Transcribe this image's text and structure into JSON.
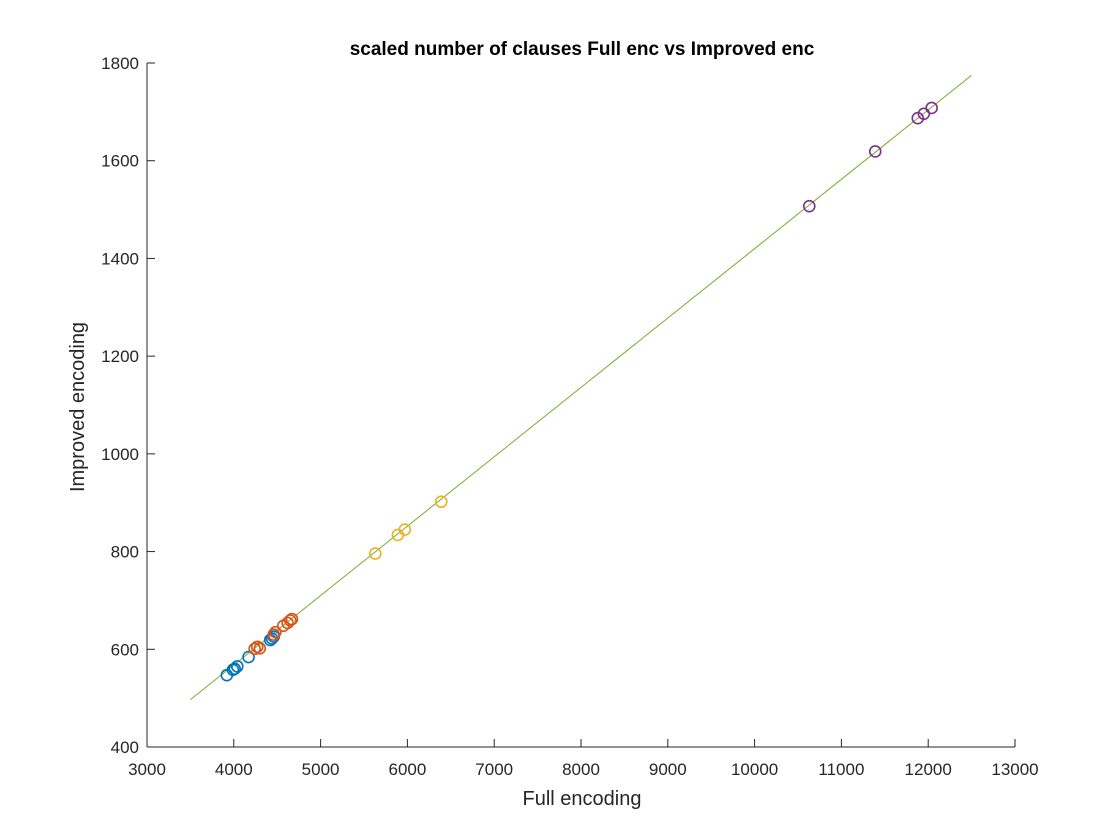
{
  "chart_data": {
    "type": "scatter",
    "title": "scaled number of clauses Full enc vs Improved enc",
    "xlabel": "Full encoding",
    "ylabel": "Improved encoding",
    "xlim": [
      3000,
      13000
    ],
    "ylim": [
      400,
      1800
    ],
    "xticks": [
      3000,
      4000,
      5000,
      6000,
      7000,
      8000,
      9000,
      10000,
      11000,
      12000,
      13000
    ],
    "yticks": [
      400,
      600,
      800,
      1000,
      1200,
      1400,
      1600,
      1800
    ],
    "grid": false,
    "series": [
      {
        "color": "#0072BD",
        "marker": "circle-open",
        "points": [
          {
            "x": 3920,
            "y": 547
          },
          {
            "x": 3990,
            "y": 558
          },
          {
            "x": 4010,
            "y": 560
          },
          {
            "x": 4040,
            "y": 565
          },
          {
            "x": 4170,
            "y": 584
          },
          {
            "x": 4420,
            "y": 619
          },
          {
            "x": 4440,
            "y": 622
          },
          {
            "x": 4460,
            "y": 626
          }
        ]
      },
      {
        "color": "#D95319",
        "marker": "circle-open",
        "points": [
          {
            "x": 4240,
            "y": 601
          },
          {
            "x": 4270,
            "y": 605
          },
          {
            "x": 4300,
            "y": 602
          },
          {
            "x": 4460,
            "y": 630
          },
          {
            "x": 4480,
            "y": 635
          },
          {
            "x": 4570,
            "y": 648
          },
          {
            "x": 4620,
            "y": 654
          },
          {
            "x": 4650,
            "y": 659
          },
          {
            "x": 4670,
            "y": 662
          }
        ]
      },
      {
        "color": "#EDB120",
        "marker": "circle-open",
        "points": [
          {
            "x": 5630,
            "y": 796
          },
          {
            "x": 5890,
            "y": 834
          },
          {
            "x": 5970,
            "y": 845
          },
          {
            "x": 6390,
            "y": 902
          }
        ]
      },
      {
        "color": "#7E2F8E",
        "marker": "circle-open",
        "points": [
          {
            "x": 10630,
            "y": 1507
          },
          {
            "x": 11390,
            "y": 1619
          },
          {
            "x": 11880,
            "y": 1687
          },
          {
            "x": 11950,
            "y": 1696
          },
          {
            "x": 12040,
            "y": 1708
          }
        ]
      }
    ],
    "reference_line": {
      "color": "#77AC30",
      "points": [
        {
          "x": 3500,
          "y": 497
        },
        {
          "x": 12500,
          "y": 1775
        }
      ]
    }
  }
}
